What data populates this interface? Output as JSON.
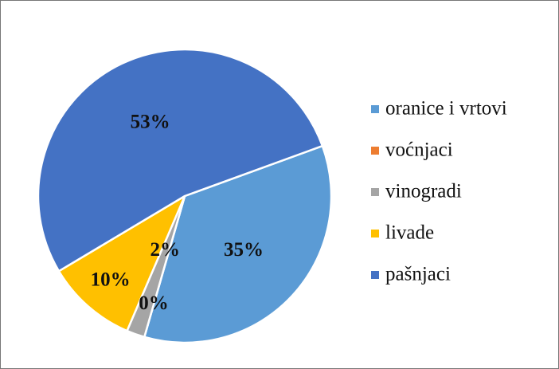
{
  "chart_data": {
    "type": "pie",
    "categories": [
      "oranice i vrtovi",
      "voćnjaci",
      "vinogradi",
      "livade",
      "pašnjaci"
    ],
    "values": [
      35,
      0,
      2,
      10,
      53
    ],
    "value_labels": [
      "35%",
      "0%",
      "2%",
      "10%",
      "53%"
    ],
    "colors": [
      "#5b9bd5",
      "#ed7d31",
      "#a5a5a5",
      "#ffc000",
      "#4472c4"
    ],
    "legend": "right"
  }
}
